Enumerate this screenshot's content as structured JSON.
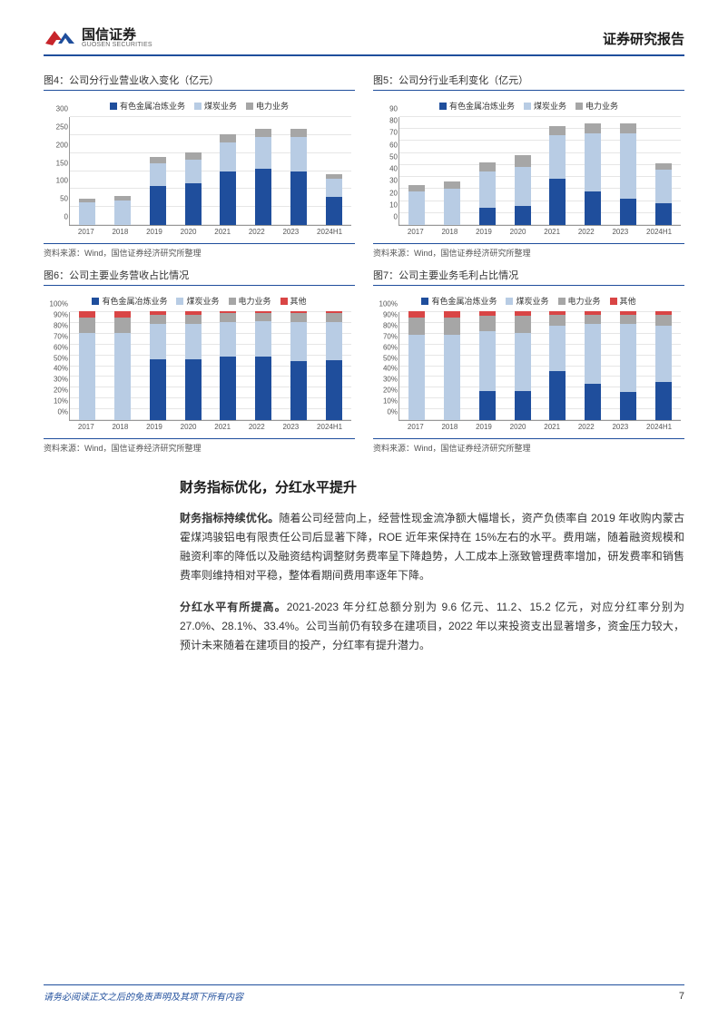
{
  "header": {
    "logo_cn": "国信证券",
    "logo_en": "GUOSEN SECURITIES",
    "report_type": "证券研究报告"
  },
  "colors": {
    "series1": "#1f4e9c",
    "series2": "#b8cce4",
    "series3": "#a6a6a6",
    "series4": "#d94545",
    "grid": "#e6e6e6",
    "axis": "#999999",
    "rule": "#1f4e9c"
  },
  "charts": {
    "c4": {
      "title": "图4：公司分行业营业收入变化（亿元）",
      "legend": [
        "有色金属冶炼业务",
        "煤炭业务",
        "电力业务"
      ],
      "categories": [
        "2017",
        "2018",
        "2019",
        "2020",
        "2021",
        "2022",
        "2023",
        "2024H1"
      ],
      "ymax": 300,
      "ystep": 50,
      "stacks": [
        [
          0,
          62,
          10
        ],
        [
          0,
          68,
          12
        ],
        [
          108,
          62,
          18
        ],
        [
          115,
          65,
          20
        ],
        [
          148,
          80,
          22
        ],
        [
          155,
          88,
          22
        ],
        [
          148,
          95,
          22
        ],
        [
          78,
          50,
          12
        ]
      ],
      "source": "资料来源：Wind，国信证券经济研究所整理"
    },
    "c5": {
      "title": "图5：公司分行业毛利变化（亿元）",
      "legend": [
        "有色金属冶炼业务",
        "煤炭业务",
        "电力业务"
      ],
      "categories": [
        "2017",
        "2018",
        "2019",
        "2020",
        "2021",
        "2022",
        "2023",
        "2024H1"
      ],
      "ymax": 90,
      "ystep": 10,
      "stacks": [
        [
          0,
          28,
          5
        ],
        [
          0,
          30,
          6
        ],
        [
          14,
          30,
          8
        ],
        [
          16,
          32,
          10
        ],
        [
          38,
          36,
          8
        ],
        [
          28,
          48,
          8
        ],
        [
          22,
          54,
          8
        ],
        [
          18,
          28,
          5
        ]
      ],
      "source": "资料来源：Wind，国信证券经济研究所整理"
    },
    "c6": {
      "title": "图6：公司主要业务营收占比情况",
      "legend": [
        "有色金属冶炼业务",
        "煤炭业务",
        "电力业务",
        "其他"
      ],
      "categories": [
        "2017",
        "2018",
        "2019",
        "2020",
        "2021",
        "2022",
        "2023",
        "2024H1"
      ],
      "ymax": 100,
      "ystep": 10,
      "pct": true,
      "stacks": [
        [
          0,
          80,
          14,
          6
        ],
        [
          0,
          80,
          14,
          6
        ],
        [
          56,
          32,
          9,
          3
        ],
        [
          56,
          32,
          9,
          3
        ],
        [
          58,
          32,
          8,
          2
        ],
        [
          58,
          33,
          7,
          2
        ],
        [
          54,
          36,
          8,
          2
        ],
        [
          55,
          35,
          8,
          2
        ]
      ],
      "source": "资料来源：Wind，国信证券经济研究所整理"
    },
    "c7": {
      "title": "图7：公司主要业务毛利占比情况",
      "legend": [
        "有色金属冶炼业务",
        "煤炭业务",
        "电力业务",
        "其他"
      ],
      "categories": [
        "2017",
        "2018",
        "2019",
        "2020",
        "2021",
        "2022",
        "2023",
        "2024H1"
      ],
      "ymax": 100,
      "ystep": 10,
      "pct": true,
      "stacks": [
        [
          0,
          78,
          16,
          6
        ],
        [
          0,
          78,
          16,
          6
        ],
        [
          27,
          55,
          14,
          4
        ],
        [
          27,
          53,
          16,
          4
        ],
        [
          45,
          42,
          10,
          3
        ],
        [
          33,
          55,
          9,
          3
        ],
        [
          26,
          62,
          9,
          3
        ],
        [
          35,
          52,
          10,
          3
        ]
      ],
      "source": "资料来源：Wind，国信证券经济研究所整理"
    }
  },
  "text": {
    "heading": "财务指标优化，分红水平提升",
    "para1_bold": "财务指标持续优化。",
    "para1": "随着公司经营向上，经营性现金流净额大幅增长，资产负债率自 2019 年收购内蒙古霍煤鸿骏铝电有限责任公司后显著下降，ROE 近年来保持在 15%左右的水平。费用端，随着融资规模和融资利率的降低以及融资结构调整财务费率呈下降趋势，人工成本上涨致管理费率增加，研发费率和销售费率则维持相对平稳，整体看期间费用率逐年下降。",
    "para2_bold": "分红水平有所提高。",
    "para2": "2021-2023 年分红总额分别为 9.6 亿元、11.2、15.2 亿元，对应分红率分别为 27.0%、28.1%、33.4%。公司当前仍有较多在建项目，2022 年以来投资支出显著增多，资金压力较大，预计未来随着在建项目的投产，分红率有提升潜力。"
  },
  "footer": {
    "disclaimer": "请务必阅读正文之后的免责声明及其项下所有内容",
    "page": "7"
  }
}
